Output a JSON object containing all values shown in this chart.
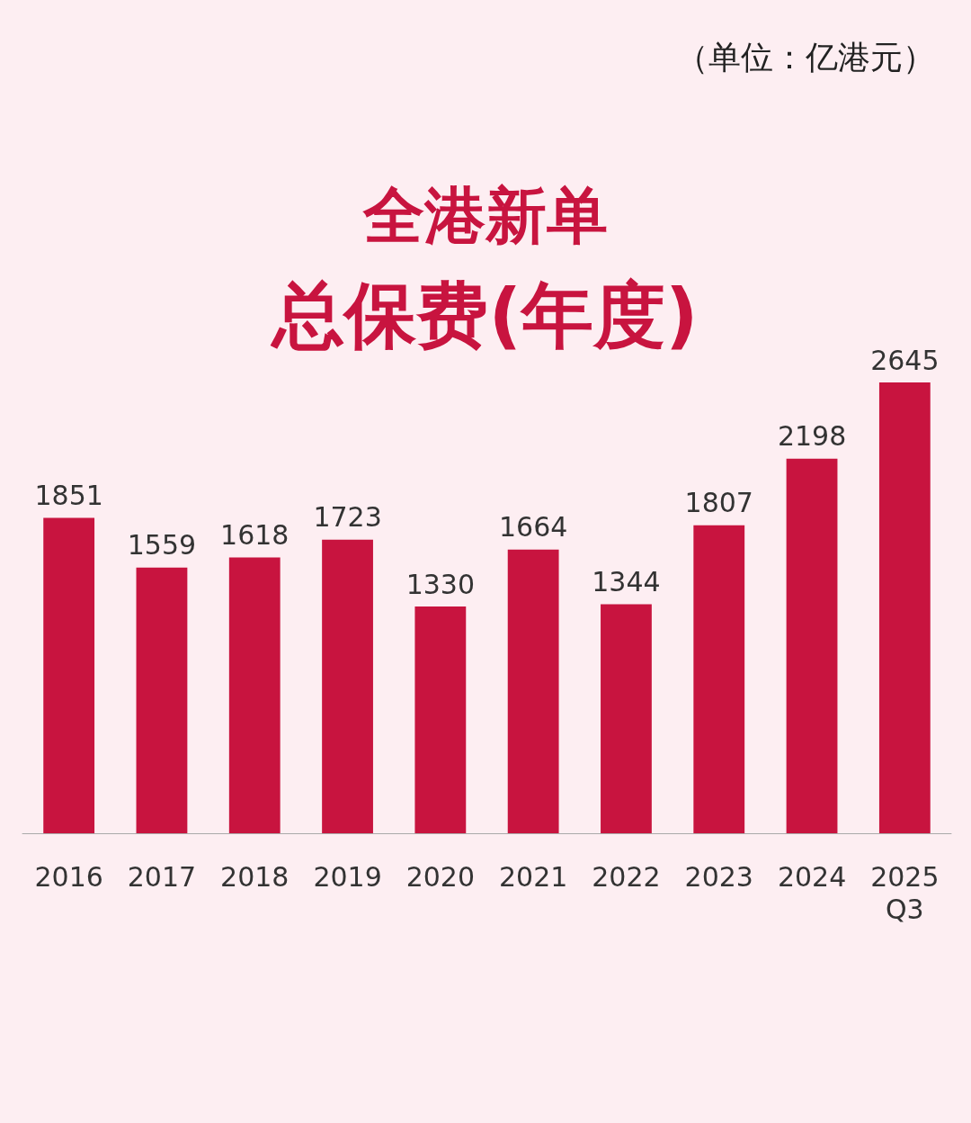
{
  "chart_data": {
    "type": "bar",
    "title": "全港新单",
    "subtitle": "总保费(年度)",
    "annotations": [
      "（单位：亿港元）"
    ],
    "categories": [
      "2016",
      "2017",
      "2018",
      "2019",
      "2020",
      "2021",
      "2022",
      "2023",
      "2024",
      "2025\nQ3"
    ],
    "values": [
      1851,
      1559,
      1618,
      1723,
      1330,
      1664,
      1344,
      1807,
      2198,
      2645
    ],
    "color": "#c8143f",
    "data_labels": true,
    "tick_labels": "x"
  }
}
